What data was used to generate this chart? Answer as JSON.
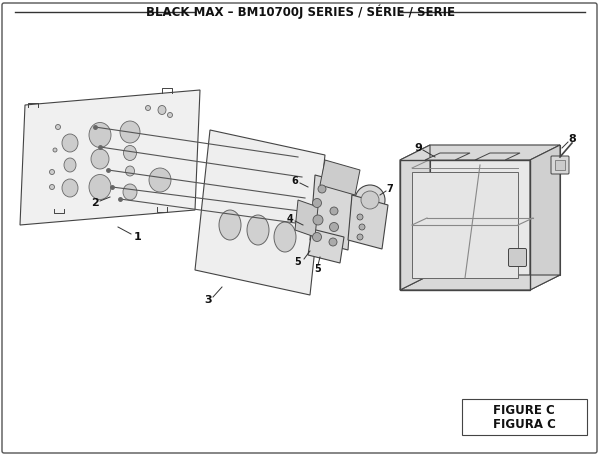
{
  "title": "BLACK MAX – BM10700J SERIES / SÉRIE / SERIE",
  "figure_label": "FIGURE C",
  "figura_label": "FIGURA C",
  "bg_color": "#ffffff",
  "line_color": "#333333",
  "part_edge": "#444444",
  "fill_light": "#f0f0f0",
  "fill_mid": "#d8d8d8",
  "fill_dark": "#b8b8b8",
  "title_fontsize": 8.5,
  "label_fontsize": 8,
  "figsize": [
    6.0,
    4.55
  ],
  "dpi": 100
}
